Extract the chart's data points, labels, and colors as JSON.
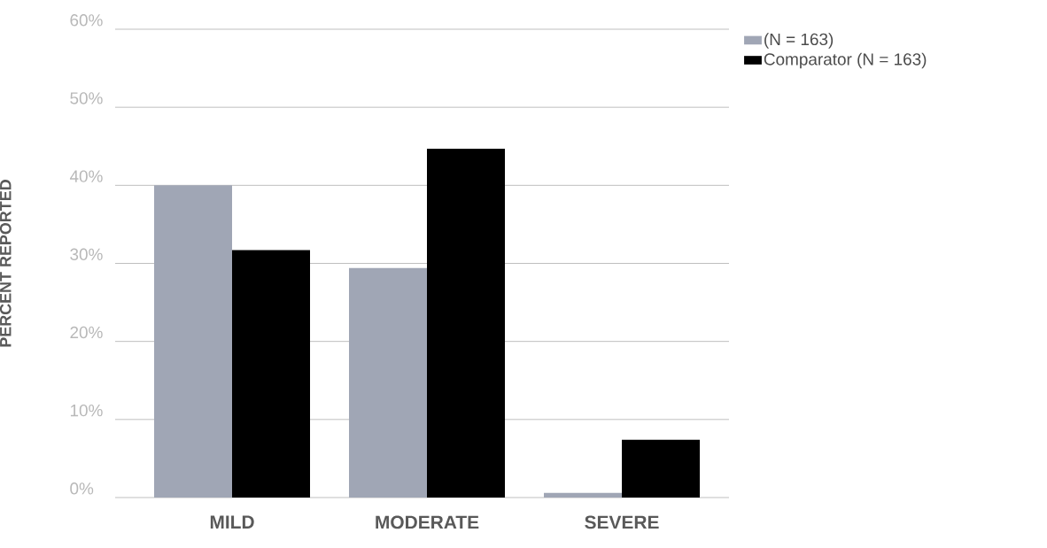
{
  "chart_data": {
    "type": "bar",
    "ylabel": "PERCENT REPORTED",
    "categories": [
      "MILD",
      "MODERATE",
      "SEVERE"
    ],
    "series": [
      {
        "name": "(N = 163)",
        "color": "#a0a6b5",
        "values": [
          40,
          29.4,
          0.6
        ]
      },
      {
        "name": "Comparator (N = 163)",
        "color": "#000000",
        "values": [
          31.7,
          44.7,
          7.4
        ]
      }
    ],
    "ylim": [
      0,
      60
    ],
    "yticks": [
      {
        "value": 0,
        "label": "0%"
      },
      {
        "value": 10,
        "label": "10%"
      },
      {
        "value": 20,
        "label": "20%"
      },
      {
        "value": 30,
        "label": "30%"
      },
      {
        "value": 40,
        "label": "40%"
      },
      {
        "value": 50,
        "label": "50%"
      },
      {
        "value": 60,
        "label": "60%"
      }
    ],
    "grid": "y",
    "legend": "top right"
  }
}
